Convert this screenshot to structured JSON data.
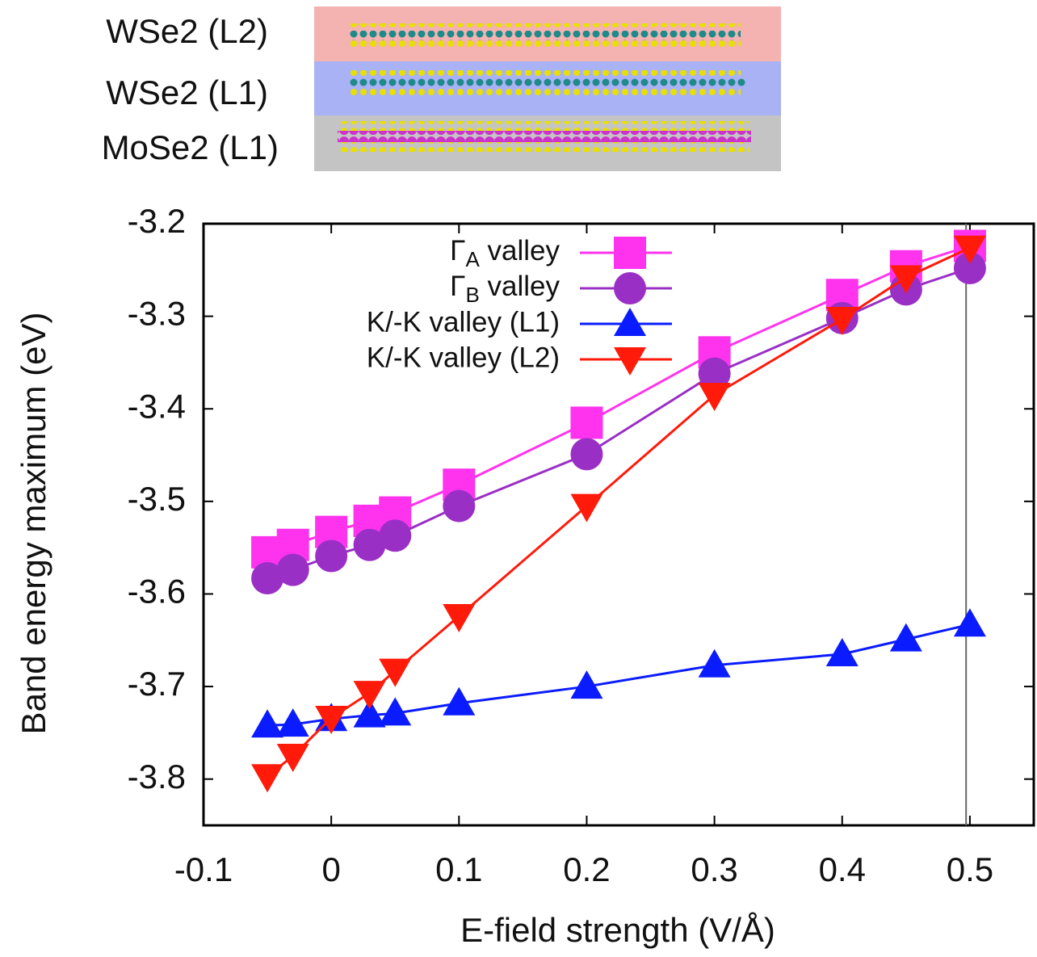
{
  "structure": {
    "layers": [
      "WSe2 (L2)",
      "WSe2 (L1)",
      "MoSe2 (L1)"
    ]
  },
  "chart_data": {
    "type": "line",
    "xlabel": "E-field strength (V/Å)",
    "ylabel": "Band energy maximum (eV)",
    "xlim": [
      -0.1,
      0.55
    ],
    "ylim": [
      -3.85,
      -3.2
    ],
    "xticks": [
      -0.1,
      0,
      0.1,
      0.2,
      0.3,
      0.4,
      0.5
    ],
    "yticks": [
      -3.2,
      -3.3,
      -3.4,
      -3.5,
      -3.6,
      -3.7,
      -3.8
    ],
    "vline": 0.497,
    "grid": false,
    "legend": "upper right",
    "x": [
      -0.05,
      -0.03,
      0,
      0.03,
      0.05,
      0.1,
      0.2,
      0.3,
      0.4,
      0.45,
      0.5
    ],
    "series": [
      {
        "name": "ΓA valley",
        "color": "#ff33ee",
        "marker": "square",
        "values": [
          -3.555,
          -3.547,
          -3.533,
          -3.521,
          -3.512,
          -3.482,
          -3.415,
          -3.339,
          -3.277,
          -3.246,
          -3.224
        ]
      },
      {
        "name": "ΓB valley",
        "color": "#9a2fc6",
        "marker": "circle",
        "values": [
          -3.583,
          -3.574,
          -3.559,
          -3.547,
          -3.537,
          -3.505,
          -3.449,
          -3.362,
          -3.302,
          -3.271,
          -3.248
        ]
      },
      {
        "name": "K/-K valley (L1)",
        "color": "#0a1cff",
        "marker": "triangle-up",
        "values": [
          -3.742,
          -3.741,
          -3.735,
          -3.731,
          -3.729,
          -3.718,
          -3.7,
          -3.677,
          -3.665,
          -3.649,
          -3.633
        ]
      },
      {
        "name": "K/-K valley (L2)",
        "color": "#ff1a0a",
        "marker": "triangle-down",
        "values": [
          -3.797,
          -3.775,
          -3.734,
          -3.707,
          -3.683,
          -3.624,
          -3.505,
          -3.385,
          -3.303,
          -3.258,
          -3.226
        ]
      }
    ]
  }
}
